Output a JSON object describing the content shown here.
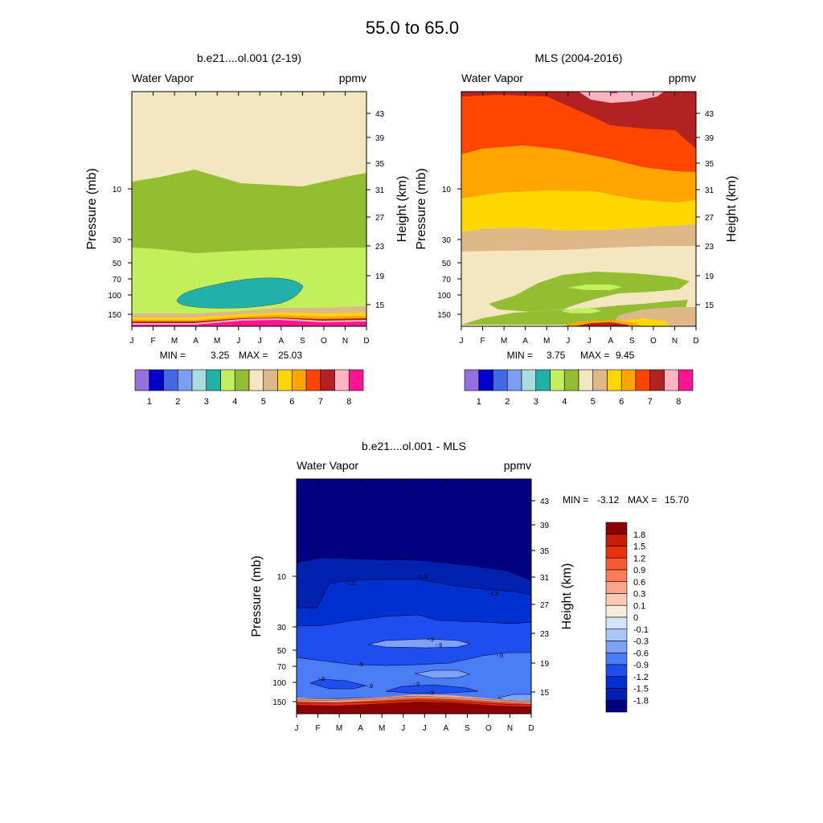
{
  "figure": {
    "title": "55.0 to  65.0"
  },
  "palette": {
    "abs_colors": [
      "#9370db",
      "#0000cd",
      "#4169e1",
      "#7b9ff0",
      "#a8dde0",
      "#20b2aa",
      "#c1f05c",
      "#94bd32",
      "#f5e6c2",
      "#deb887",
      "#ffd700",
      "#ffa500",
      "#ff4500",
      "#b22222",
      "#ffb6c1",
      "#ff1493"
    ],
    "diff_colors": [
      "#000080",
      "#0020b0",
      "#0030d0",
      "#1e4df0",
      "#4a7cf5",
      "#7ca3f8",
      "#aac7fb",
      "#d2e4fc",
      "#fbebdc",
      "#fcc9b4",
      "#fca78c",
      "#fc7c5a",
      "#f55a35",
      "#e6300e",
      "#c81e00",
      "#8b0000"
    ],
    "diff_fill": {
      "top": "#000080",
      "band1": "#0020b0",
      "band2": "#0030d0",
      "band3": "#1e4df0",
      "band4": "#4a7cf5",
      "patch": "#7ca3f8",
      "bottom": "#8b0000",
      "contour": "#000030"
    }
  },
  "chart_data": [
    {
      "type": "heatmap",
      "title": "b.e21....ol.001 (2-19)",
      "variable": "Water Vapor",
      "units": "ppmv",
      "ylabel": "Pressure (mb)",
      "y2label": "Height (km)",
      "x_ticks": [
        "J",
        "F",
        "M",
        "A",
        "M",
        "J",
        "J",
        "A",
        "S",
        "O",
        "N",
        "D"
      ],
      "pressure_ticks": [
        "10",
        "30",
        "50",
        "70",
        "100",
        "150"
      ],
      "height_ticks": [
        "43",
        "39",
        "35",
        "31",
        "27",
        "23",
        "19",
        "15"
      ],
      "stats": {
        "min_label": "MIN =",
        "min": "3.25",
        "max_label": "MAX =",
        "max": "25.03"
      },
      "colorbar": {
        "levels": [
          "1",
          "2",
          "3",
          "4",
          "5",
          "6",
          "7",
          "8"
        ]
      },
      "contour_levels_ppmv": [
        1,
        1.5,
        2,
        2.5,
        3,
        3.5,
        4,
        4.5,
        5,
        5.5,
        6,
        6.5,
        7,
        7.5,
        8
      ]
    },
    {
      "type": "heatmap",
      "title": "MLS (2004-2016)",
      "variable": "Water Vapor",
      "units": "ppmv",
      "ylabel": "Pressure (mb)",
      "y2label": "Height (km)",
      "x_ticks": [
        "J",
        "F",
        "M",
        "A",
        "M",
        "J",
        "J",
        "A",
        "S",
        "O",
        "N",
        "D"
      ],
      "pressure_ticks": [
        "10",
        "30",
        "50",
        "70",
        "100",
        "150"
      ],
      "height_ticks": [
        "43",
        "39",
        "35",
        "31",
        "27",
        "23",
        "19",
        "15"
      ],
      "stats": {
        "min_label": "MIN =",
        "min": "3.75",
        "max_label": "MAX =",
        "max": "9.45"
      },
      "colorbar": {
        "levels": [
          "1",
          "2",
          "3",
          "4",
          "5",
          "6",
          "7",
          "8"
        ]
      },
      "contour_levels_ppmv": [
        1,
        1.5,
        2,
        2.5,
        3,
        3.5,
        4,
        4.5,
        5,
        5.5,
        6,
        6.5,
        7,
        7.5,
        8
      ]
    },
    {
      "type": "heatmap",
      "title": "b.e21....ol.001 - MLS",
      "variable": "Water Vapor",
      "units": "ppmv",
      "ylabel": "Pressure (mb)",
      "y2label": "Height (km)",
      "x_ticks": [
        "J",
        "F",
        "M",
        "A",
        "M",
        "J",
        "J",
        "A",
        "S",
        "O",
        "N",
        "D"
      ],
      "pressure_ticks": [
        "10",
        "30",
        "50",
        "70",
        "100",
        "150"
      ],
      "height_ticks": [
        "43",
        "39",
        "35",
        "31",
        "27",
        "23",
        "19",
        "15"
      ],
      "stats": {
        "min_label": "MIN =",
        "min": "-3.12",
        "max_label": "MAX =",
        "max": "15.70"
      },
      "colorbar": {
        "levels": [
          "1.8",
          "1.5",
          "1.2",
          "0.9",
          "0.6",
          "0.3",
          "0.1",
          "0",
          "-0.1",
          "-0.3",
          "-0.6",
          "-0.9",
          "-1.2",
          "-1.5",
          "-1.8"
        ]
      },
      "contour_labels": [
        "-1.5",
        "-1.5",
        "-1.5",
        "-.9",
        "-.9",
        "-.9",
        "-.9",
        "-.9",
        "-.9",
        "-.9",
        "-.9"
      ]
    }
  ]
}
